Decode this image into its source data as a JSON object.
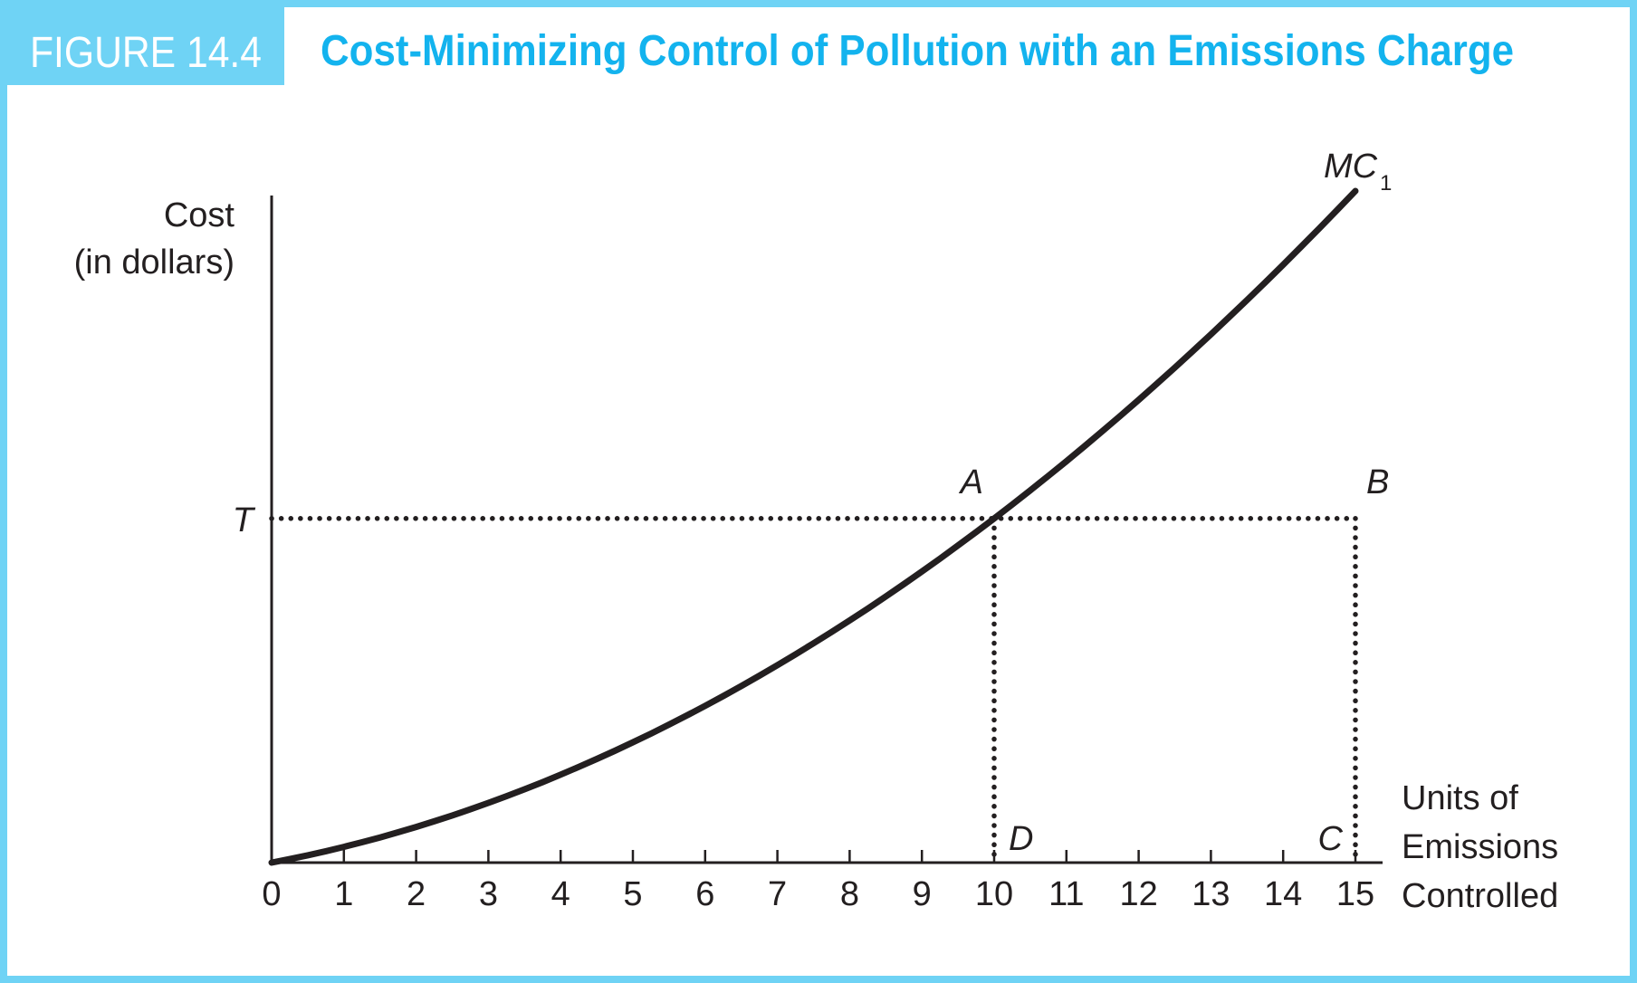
{
  "figure_label": "FIGURE 14.4",
  "figure_title": "Cost-Minimizing Control of Pollution with an Emissions Charge",
  "colors": {
    "frame": "#6fd3f5",
    "label_bg": "#6fd3f5",
    "label_text": "#ffffff",
    "title_text": "#13b3ee",
    "ink": "#231f20"
  },
  "chart_data": {
    "type": "line",
    "xlabel": "Units of Emissions Controlled",
    "xlabel_lines": [
      "Units of",
      "Emissions",
      "Controlled"
    ],
    "ylabel": "Cost (in dollars)",
    "ylabel_lines": [
      "Cost",
      "(in dollars)"
    ],
    "x_ticks": [
      0,
      1,
      2,
      3,
      4,
      5,
      6,
      7,
      8,
      9,
      10,
      11,
      12,
      13,
      14,
      15
    ],
    "xlim": [
      0,
      15
    ],
    "ylim": [
      0,
      1
    ],
    "y_ticks_labeled": [
      {
        "label": "T",
        "value": 0.49
      }
    ],
    "series": [
      {
        "name": "MC",
        "name_subscript": "1",
        "x": [
          0,
          1,
          2,
          3,
          4,
          5,
          6,
          7,
          8,
          9,
          10,
          11,
          12,
          13,
          14,
          15
        ],
        "y": [
          0,
          0.03,
          0.07,
          0.115,
          0.165,
          0.22,
          0.28,
          0.345,
          0.415,
          0.475,
          0.49,
          0.595,
          0.68,
          0.77,
          0.865,
          0.965
        ]
      }
    ],
    "points": [
      {
        "label": "A",
        "x": 10,
        "y": 0.49
      },
      {
        "label": "B",
        "x": 15,
        "y": 0.49
      },
      {
        "label": "C",
        "x": 15,
        "y": 0
      },
      {
        "label": "D",
        "x": 10,
        "y": 0
      }
    ],
    "guide_lines": [
      {
        "from": [
          0,
          0.49
        ],
        "to": [
          15,
          0.49
        ],
        "style": "dotted"
      },
      {
        "from": [
          10,
          0.49
        ],
        "to": [
          10,
          0
        ],
        "style": "dotted"
      },
      {
        "from": [
          15,
          0.49
        ],
        "to": [
          15,
          0
        ],
        "style": "dotted"
      }
    ],
    "grid": false,
    "legend": "none"
  }
}
